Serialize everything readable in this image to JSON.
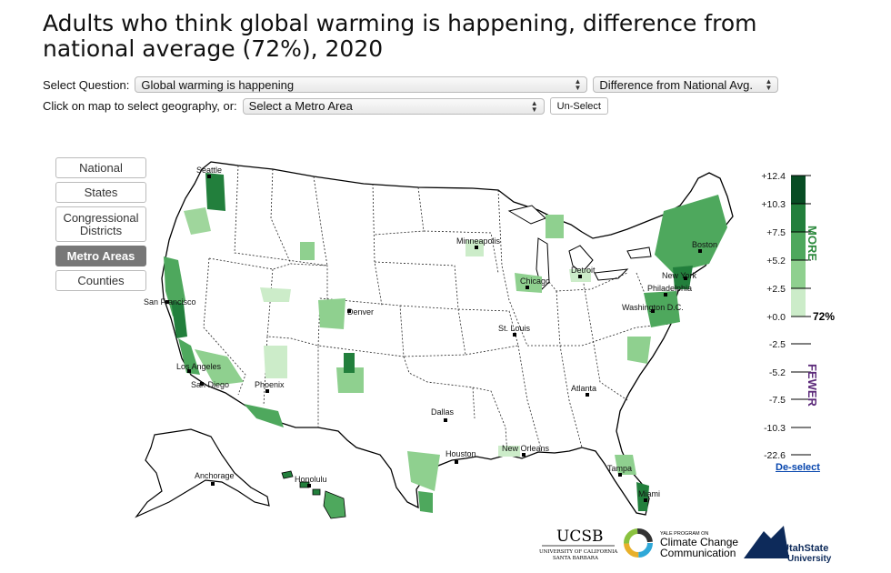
{
  "title": "Adults who think global warming is happening, difference from national average (72%), 2020",
  "controls": {
    "question_label": "Select Question:",
    "question_value": "Global warming is happening",
    "mode_value": "Difference from National Avg.",
    "geo_label": "Click on map to select geography, or:",
    "metro_value": "Select a Metro Area",
    "unselect_label": "Un-Select"
  },
  "geography_buttons": [
    "National",
    "States",
    "Congressional Districts",
    "Metro Areas",
    "Counties"
  ],
  "active_geography": "Metro Areas",
  "cities": [
    "Seattle",
    "Minneapolis",
    "Detroit",
    "Boston",
    "Chicago",
    "New York",
    "Philadelphia",
    "Washington D.C.",
    "San Francisco",
    "Denver",
    "St. Louis",
    "Los Angeles",
    "San Diego",
    "Phoenix",
    "Atlanta",
    "Dallas",
    "Houston",
    "New Orleans",
    "Tampa",
    "Miami",
    "Anchorage",
    "Honolulu"
  ],
  "legend": {
    "ticks": [
      "+12.4",
      "+10.3",
      "+7.5",
      "+5.2",
      "+2.5",
      "+0.0",
      "-2.5",
      "-5.2",
      "-7.5",
      "-10.3",
      "-22.6"
    ],
    "more_label": "MORE",
    "fewer_label": "FEWER",
    "baseline_label": "72%",
    "more_colors": [
      "#084d24",
      "#227f3c",
      "#4ea85d",
      "#8fd08f",
      "#ccecc9"
    ],
    "more_color": "#2e8b3f",
    "fewer_color": "#5c2a7a",
    "deselect_label": "De-select"
  },
  "logos": {
    "ucsb": "UCSB",
    "ucsb_sub1": "UNIVERSITY OF CALIFORNIA",
    "ucsb_sub2": "SANTA BARBARA",
    "yale_small": "YALE PROGRAM ON",
    "yale_line1": "Climate Change",
    "yale_line2": "Communication",
    "usu_line1": "UtahState",
    "usu_line2": "University"
  }
}
